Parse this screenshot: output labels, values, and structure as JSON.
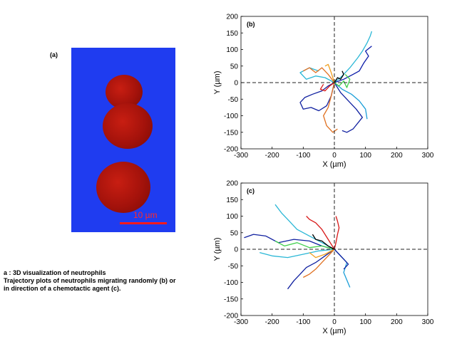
{
  "figure": {
    "panel_a_label": "(a)",
    "scale_bar_text": "10 µm",
    "caption": [
      "a : 3D visualization of neutrophils",
      "Trajectory plots of neutrophils migrating randomly (b) or",
      "in direction of a chemotactic agent (c)."
    ]
  },
  "colors": {
    "background_blue": "#1f3cf0",
    "cell_red": "#a3120b",
    "scale_bar_red": "#ff1a1a"
  },
  "chart_data": [
    {
      "type": "line",
      "panel_label": "(b)",
      "xlabel": "X (µm)",
      "ylabel": "Y (µm)",
      "xlim": [
        -300,
        300
      ],
      "ylim": [
        -200,
        200
      ],
      "xticks": [
        -300,
        -200,
        -100,
        0,
        100,
        200,
        300
      ],
      "yticks": [
        -200,
        -150,
        -100,
        -50,
        0,
        50,
        100,
        150,
        200
      ],
      "grid": false,
      "origin_lines": "dashed",
      "series": [
        {
          "color": "#1020a0",
          "x": [
            0,
            -20,
            -40,
            -70,
            -95,
            -110,
            -100,
            -75,
            -50,
            -25,
            -10,
            0
          ],
          "y": [
            0,
            -10,
            -25,
            -35,
            -45,
            -60,
            -80,
            -75,
            -85,
            -70,
            -40,
            0
          ]
        },
        {
          "color": "#1020a0",
          "x": [
            0,
            20,
            45,
            70,
            90,
            60,
            40,
            25
          ],
          "y": [
            0,
            -30,
            -55,
            -80,
            -105,
            -140,
            -150,
            -145
          ]
        },
        {
          "color": "#0a1aa8",
          "x": [
            0,
            30,
            60,
            80,
            95,
            110,
            100,
            120
          ],
          "y": [
            0,
            10,
            25,
            35,
            60,
            80,
            95,
            110
          ]
        },
        {
          "color": "#2ab7d6",
          "x": [
            0,
            25,
            50,
            75,
            90,
            105,
            115,
            120
          ],
          "y": [
            0,
            20,
            45,
            75,
            95,
            120,
            140,
            155
          ]
        },
        {
          "color": "#2ab7d6",
          "x": [
            0,
            -30,
            -60,
            -90,
            -110,
            -80,
            -50
          ],
          "y": [
            0,
            15,
            20,
            10,
            30,
            45,
            35
          ]
        },
        {
          "color": "#1a9ed8",
          "x": [
            0,
            25,
            55,
            80,
            100,
            105
          ],
          "y": [
            0,
            -20,
            -35,
            -55,
            -80,
            -110
          ]
        },
        {
          "color": "#e07020",
          "x": [
            0,
            -20,
            -40,
            -60,
            -80,
            -100
          ],
          "y": [
            0,
            25,
            45,
            30,
            45,
            35
          ]
        },
        {
          "color": "#e07020",
          "x": [
            0,
            -10,
            -20,
            -35,
            -25,
            -5,
            10
          ],
          "y": [
            0,
            -40,
            -75,
            -100,
            -130,
            -150,
            -140
          ]
        },
        {
          "color": "#3ecf4a",
          "x": [
            0,
            15,
            30,
            40,
            50,
            35
          ],
          "y": [
            0,
            -10,
            5,
            -15,
            10,
            25
          ]
        },
        {
          "color": "#d81818",
          "x": [
            0,
            -15,
            -30,
            -45,
            -35
          ],
          "y": [
            0,
            -10,
            -25,
            -20,
            -5
          ]
        },
        {
          "color": "#f0a020",
          "x": [
            0,
            -10,
            -20,
            -30
          ],
          "y": [
            0,
            30,
            55,
            50
          ]
        },
        {
          "color": "#000000",
          "x": [
            0,
            10,
            20,
            30,
            25
          ],
          "y": [
            0,
            15,
            10,
            25,
            35
          ]
        }
      ]
    },
    {
      "type": "line",
      "panel_label": "(c)",
      "xlabel": "X (µm)",
      "ylabel": "Y (µm)",
      "xlim": [
        -300,
        300
      ],
      "ylim": [
        -200,
        200
      ],
      "xticks": [
        -300,
        -200,
        -100,
        0,
        100,
        200,
        300
      ],
      "yticks": [
        -200,
        -150,
        -100,
        -50,
        0,
        50,
        100,
        150,
        200
      ],
      "grid": false,
      "origin_lines": "dashed",
      "series": [
        {
          "color": "#1020a0",
          "x": [
            0,
            -40,
            -80,
            -130,
            -180,
            -220,
            -260,
            -290
          ],
          "y": [
            0,
            10,
            25,
            30,
            20,
            40,
            45,
            35
          ]
        },
        {
          "color": "#1020a0",
          "x": [
            0,
            -30,
            -60,
            -90,
            -110,
            -130,
            -150
          ],
          "y": [
            0,
            -20,
            -40,
            -55,
            -75,
            -95,
            -120
          ]
        },
        {
          "color": "#2ab7d6",
          "x": [
            0,
            -40,
            -80,
            -120,
            -150,
            -170,
            -190
          ],
          "y": [
            0,
            20,
            40,
            60,
            90,
            110,
            135
          ]
        },
        {
          "color": "#2ab7d6",
          "x": [
            0,
            -50,
            -100,
            -150,
            -200,
            -240
          ],
          "y": [
            0,
            -5,
            -15,
            -25,
            -20,
            -10
          ]
        },
        {
          "color": "#1a9ed8",
          "x": [
            0,
            20,
            40,
            30,
            50
          ],
          "y": [
            0,
            -20,
            -40,
            -70,
            -115
          ]
        },
        {
          "color": "#d81818",
          "x": [
            0,
            -20,
            -40,
            -60,
            -80,
            -90
          ],
          "y": [
            0,
            30,
            60,
            80,
            90,
            100
          ]
        },
        {
          "color": "#d81818",
          "x": [
            0,
            5,
            10,
            15,
            10,
            5
          ],
          "y": [
            0,
            20,
            45,
            65,
            85,
            100
          ]
        },
        {
          "color": "#e07020",
          "x": [
            0,
            -20,
            -40,
            -60,
            -80,
            -100
          ],
          "y": [
            0,
            -20,
            -40,
            -60,
            -75,
            -85
          ]
        },
        {
          "color": "#3ecf4a",
          "x": [
            0,
            -40,
            -80,
            -120,
            -160,
            -190
          ],
          "y": [
            0,
            10,
            5,
            20,
            10,
            25
          ]
        },
        {
          "color": "#f0a020",
          "x": [
            0,
            -30,
            -60,
            -80
          ],
          "y": [
            0,
            -15,
            -25,
            -10
          ]
        },
        {
          "color": "#000000",
          "x": [
            0,
            -20,
            -40,
            -60,
            -70
          ],
          "y": [
            0,
            10,
            25,
            30,
            45
          ]
        },
        {
          "color": "#1020a0",
          "x": [
            0,
            15,
            30,
            45,
            30
          ],
          "y": [
            0,
            -15,
            -30,
            -45,
            -60
          ]
        }
      ]
    }
  ]
}
